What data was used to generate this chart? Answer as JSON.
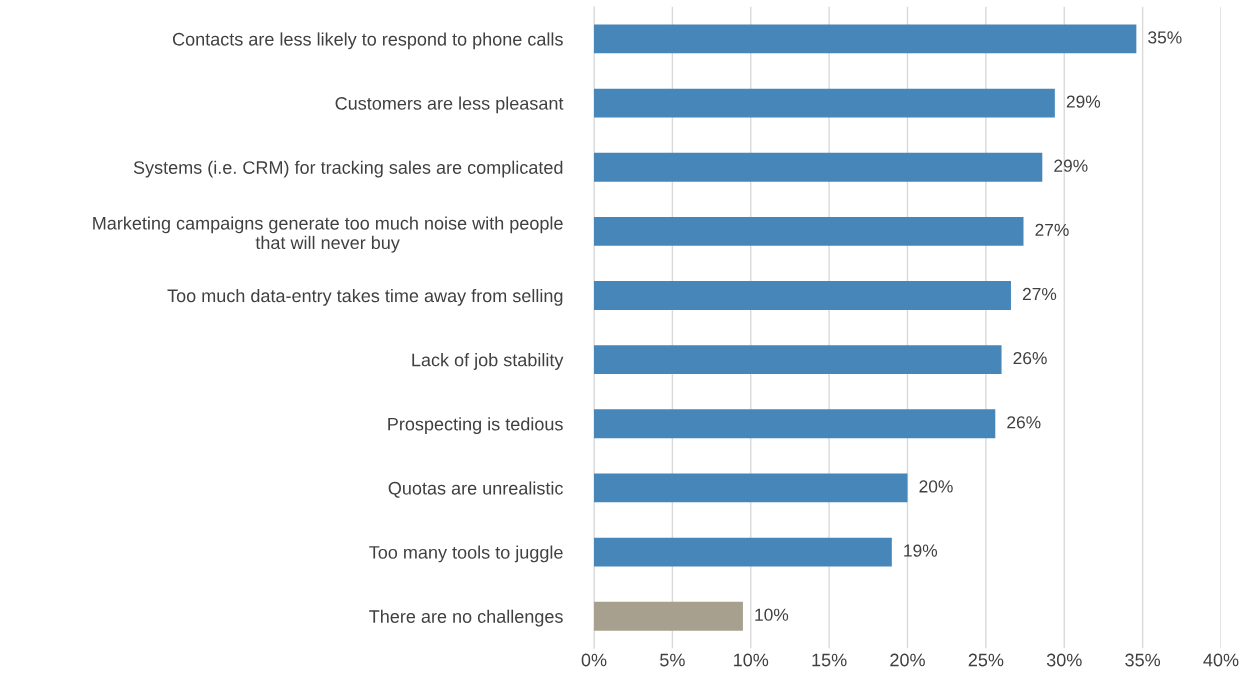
{
  "chart_data": {
    "type": "bar",
    "orientation": "horizontal",
    "categories": [
      "Contacts are less likely to respond to phone calls",
      "Customers are less pleasant",
      "Systems (i.e. CRM) for tracking sales are complicated",
      "Marketing campaigns generate too much noise with people\nthat will never buy",
      "Too much data-entry takes time away from selling",
      "Lack of job stability",
      "Prospecting is tedious",
      "Quotas are unrealistic",
      "Too many tools to juggle",
      "There are no challenges"
    ],
    "values": [
      34.6,
      29.4,
      28.6,
      27.4,
      26.6,
      26.0,
      25.6,
      20.0,
      19.0,
      9.5
    ],
    "value_labels": [
      "35%",
      "29%",
      "29%",
      "27%",
      "27%",
      "26%",
      "26%",
      "20%",
      "19%",
      "10%"
    ],
    "colors": [
      "#4686b8",
      "#4686b8",
      "#4686b8",
      "#4686b8",
      "#4686b8",
      "#4686b8",
      "#4686b8",
      "#4686b8",
      "#4686b8",
      "#a8a08e"
    ],
    "xlim": [
      0,
      40
    ],
    "xticks": [
      {
        "value": 0,
        "label": "0%"
      },
      {
        "value": 5,
        "label": "5%"
      },
      {
        "value": 10,
        "label": "10%"
      },
      {
        "value": 15,
        "label": "15%"
      },
      {
        "value": 20,
        "label": "20%"
      },
      {
        "value": 25,
        "label": "25%"
      },
      {
        "value": 30,
        "label": "30%"
      },
      {
        "value": 35,
        "label": "35%"
      },
      {
        "value": 40,
        "label": "40%"
      }
    ],
    "grid": "x",
    "legend": false
  }
}
